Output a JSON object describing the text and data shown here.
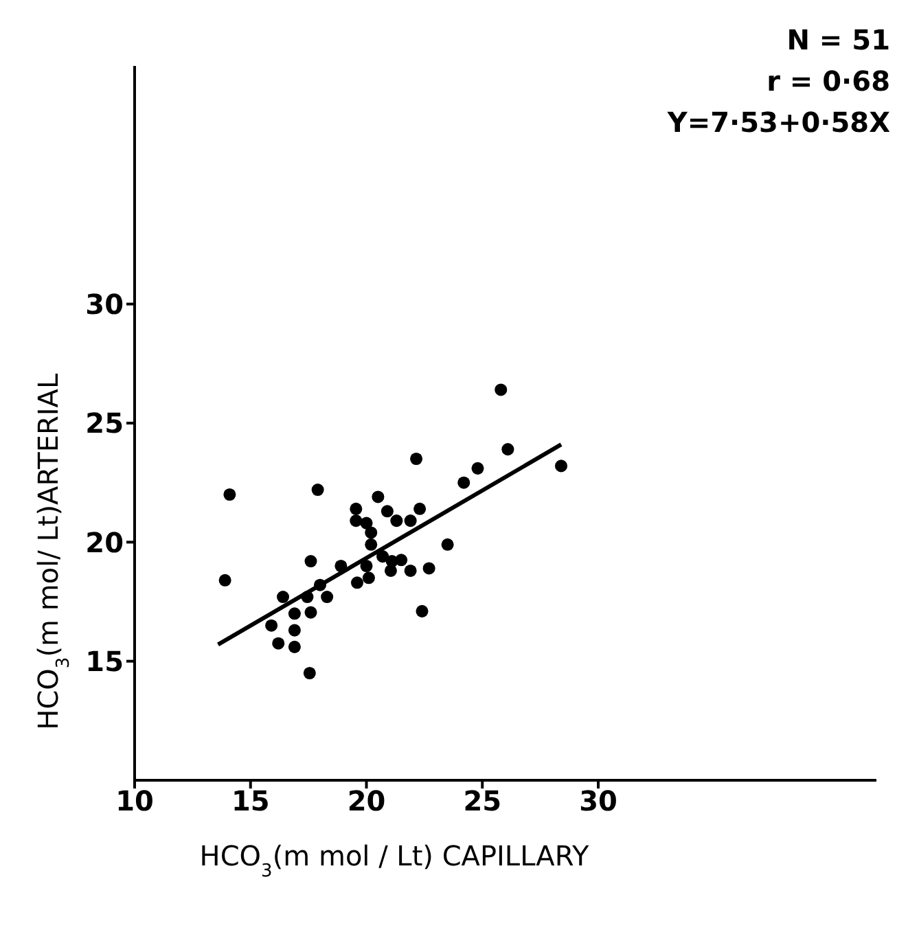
{
  "chart_data": {
    "type": "scatter",
    "xlabel": "HCO$_{3}$(m mol / Lt) CAPILLARY",
    "ylabel": "HCO$_{3}$(m mol/ Lt)ARTERIAL",
    "annotations": [
      "N = 51",
      "r = 0·68",
      "Y=7·53+0·58X"
    ],
    "xlim": [
      10,
      42
    ],
    "ylim": [
      10,
      40
    ],
    "xticks": [
      10,
      15,
      20,
      25,
      30
    ],
    "yticks": [
      15,
      20,
      25,
      30
    ],
    "grid": false,
    "legend": false,
    "marker": "circle",
    "series": [
      {
        "color": "#000000",
        "x": [
          14.1,
          13.9,
          17.9,
          17.6,
          16.4,
          15.9,
          16.2,
          16.9,
          16.9,
          16.9,
          17.6,
          17.45,
          18.0,
          18.3,
          17.55,
          18.9,
          19.6,
          20.1,
          20.0,
          20.2,
          20.2,
          20.0,
          19.55,
          19.55,
          20.5,
          20.9,
          21.3,
          20.7,
          21.1,
          21.05,
          21.5,
          21.9,
          21.9,
          22.3,
          22.15,
          22.7,
          22.4,
          23.5,
          24.2,
          24.8,
          25.8,
          26.1,
          28.4
        ],
        "values": [
          22.0,
          18.4,
          22.2,
          19.2,
          17.7,
          16.5,
          15.75,
          15.6,
          16.3,
          17.0,
          17.05,
          17.7,
          18.2,
          17.7,
          14.5,
          19.0,
          18.3,
          18.5,
          19.0,
          19.9,
          20.4,
          20.8,
          20.9,
          21.4,
          21.9,
          21.3,
          20.9,
          19.4,
          19.2,
          18.8,
          19.25,
          18.8,
          20.9,
          21.4,
          23.5,
          18.9,
          17.1,
          19.9,
          22.5,
          23.1,
          26.4,
          23.9,
          23.2
        ]
      },
      {
        "type": "line",
        "color": "#000000",
        "marker": "none",
        "line_style": "solid",
        "x": [
          13.6,
          28.4
        ],
        "values": [
          15.7,
          24.1
        ]
      }
    ]
  }
}
